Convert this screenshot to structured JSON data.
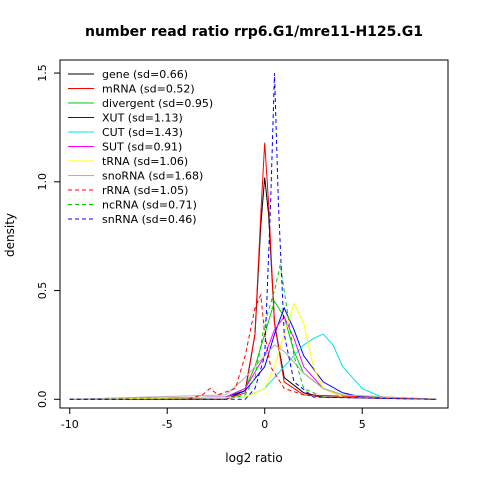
{
  "chart_data": {
    "type": "line",
    "title": "number read ratio rrp6.G1/mre11-H125.G1",
    "xlabel": "log2 ratio",
    "ylabel": "density",
    "xlim": [
      -10.5,
      9.4
    ],
    "ylim": [
      -0.04,
      1.56
    ],
    "xticks": [
      -10,
      -5,
      0,
      5
    ],
    "xtick_labels": [
      "-10",
      "-5",
      "0",
      "5"
    ],
    "yticks": [
      0.0,
      0.5,
      1.0,
      1.5
    ],
    "ytick_labels": [
      "0.0",
      "0.5",
      "1.0",
      "1.5"
    ],
    "grid": false,
    "legend_position": "top-left",
    "series": [
      {
        "name": "gene (sd=0.66)",
        "color": "#000000",
        "dash": "solid",
        "points": [
          [
            -10,
            0
          ],
          [
            -2,
            0
          ],
          [
            -1,
            0.04
          ],
          [
            -0.5,
            0.3
          ],
          [
            -0.2,
            0.8
          ],
          [
            0,
            1.02
          ],
          [
            0.2,
            0.85
          ],
          [
            0.5,
            0.35
          ],
          [
            1,
            0.1
          ],
          [
            2,
            0.03
          ],
          [
            3,
            0.01
          ],
          [
            8.8,
            0
          ]
        ]
      },
      {
        "name": "mRNA (sd=0.52)",
        "color": "#ff0000",
        "dash": "solid",
        "points": [
          [
            -10,
            0
          ],
          [
            -2,
            0
          ],
          [
            -1,
            0.03
          ],
          [
            -0.5,
            0.3
          ],
          [
            -0.2,
            0.85
          ],
          [
            0,
            1.18
          ],
          [
            0.2,
            0.9
          ],
          [
            0.5,
            0.35
          ],
          [
            1,
            0.08
          ],
          [
            2,
            0.02
          ],
          [
            8.8,
            0
          ]
        ]
      },
      {
        "name": "divergent (sd=0.95)",
        "color": "#00cc00",
        "dash": "solid",
        "points": [
          [
            -10,
            0
          ],
          [
            -2,
            0.01
          ],
          [
            -1,
            0.05
          ],
          [
            -0.5,
            0.15
          ],
          [
            0,
            0.3
          ],
          [
            0.5,
            0.45
          ],
          [
            1,
            0.38
          ],
          [
            1.5,
            0.22
          ],
          [
            2,
            0.12
          ],
          [
            3,
            0.05
          ],
          [
            4,
            0.02
          ],
          [
            8.8,
            0
          ]
        ]
      },
      {
        "name": "XUT (sd=1.13)",
        "color": "#0000ff",
        "dash": "solid",
        "points": [
          [
            -10,
            0
          ],
          [
            -2,
            0.01
          ],
          [
            -1,
            0.04
          ],
          [
            0,
            0.15
          ],
          [
            0.5,
            0.3
          ],
          [
            1,
            0.42
          ],
          [
            1.5,
            0.32
          ],
          [
            2,
            0.2
          ],
          [
            3,
            0.08
          ],
          [
            4,
            0.03
          ],
          [
            5,
            0.01
          ],
          [
            8.8,
            0
          ]
        ]
      },
      {
        "name": "CUT (sd=1.43)",
        "color": "#00e5e5",
        "dash": "solid",
        "points": [
          [
            -10,
            0
          ],
          [
            -1,
            0.01
          ],
          [
            0,
            0.05
          ],
          [
            1,
            0.15
          ],
          [
            1.5,
            0.2
          ],
          [
            2,
            0.25
          ],
          [
            2.5,
            0.28
          ],
          [
            3,
            0.3
          ],
          [
            3.5,
            0.25
          ],
          [
            4,
            0.15
          ],
          [
            5,
            0.05
          ],
          [
            6,
            0.01
          ],
          [
            8.8,
            0
          ]
        ]
      },
      {
        "name": "SUT (sd=0.91)",
        "color": "#ff00ff",
        "dash": "solid",
        "points": [
          [
            -10,
            0
          ],
          [
            -2,
            0.01
          ],
          [
            -1,
            0.05
          ],
          [
            0,
            0.2
          ],
          [
            0.5,
            0.32
          ],
          [
            1,
            0.38
          ],
          [
            1.5,
            0.28
          ],
          [
            2,
            0.15
          ],
          [
            3,
            0.05
          ],
          [
            4,
            0.01
          ],
          [
            8.8,
            0
          ]
        ]
      },
      {
        "name": "tRNA (sd=1.06)",
        "color": "#ffff00",
        "dash": "solid",
        "points": [
          [
            -10,
            0
          ],
          [
            -1,
            0.01
          ],
          [
            0,
            0.05
          ],
          [
            0.5,
            0.15
          ],
          [
            1,
            0.3
          ],
          [
            1.5,
            0.44
          ],
          [
            2,
            0.35
          ],
          [
            2.5,
            0.15
          ],
          [
            3,
            0.05
          ],
          [
            4,
            0.01
          ],
          [
            8.8,
            0
          ]
        ]
      },
      {
        "name": "snoRNA (sd=1.68)",
        "color": "#b0b0b0",
        "dash": "solid",
        "points": [
          [
            -10,
            0
          ],
          [
            -2,
            0.02
          ],
          [
            -1,
            0.1
          ],
          [
            0,
            0.2
          ],
          [
            0.5,
            0.25
          ],
          [
            1,
            0.22
          ],
          [
            2,
            0.12
          ],
          [
            3,
            0.05
          ],
          [
            4,
            0.02
          ],
          [
            8.8,
            0
          ]
        ]
      },
      {
        "name": "rRNA (sd=1.05)",
        "color": "#ff0000",
        "dash": "dashed",
        "points": [
          [
            -10,
            0
          ],
          [
            -4,
            0
          ],
          [
            -3.2,
            0.02
          ],
          [
            -2.8,
            0.05
          ],
          [
            -2.4,
            0.02
          ],
          [
            -1.5,
            0.05
          ],
          [
            -1,
            0.2
          ],
          [
            -0.5,
            0.42
          ],
          [
            -0.2,
            0.48
          ],
          [
            0,
            0.3
          ],
          [
            0.3,
            0.15
          ],
          [
            1,
            0.05
          ],
          [
            2,
            0.02
          ],
          [
            3,
            0.01
          ],
          [
            8.8,
            0
          ]
        ]
      },
      {
        "name": "ncRNA (sd=0.71)",
        "color": "#00cc00",
        "dash": "dashed",
        "points": [
          [
            -10,
            0
          ],
          [
            -2,
            0
          ],
          [
            -1,
            0.02
          ],
          [
            -0.5,
            0.1
          ],
          [
            0,
            0.35
          ],
          [
            0.5,
            0.5
          ],
          [
            0.8,
            0.62
          ],
          [
            1,
            0.5
          ],
          [
            1.5,
            0.2
          ],
          [
            2,
            0.05
          ],
          [
            3,
            0.01
          ],
          [
            8.8,
            0
          ]
        ]
      },
      {
        "name": "snRNA (sd=0.46)",
        "color": "#0000ff",
        "dash": "dashed",
        "points": [
          [
            -10,
            0
          ],
          [
            -1,
            0
          ],
          [
            -0.5,
            0.05
          ],
          [
            0,
            0.2
          ],
          [
            0.3,
            0.9
          ],
          [
            0.5,
            1.5
          ],
          [
            0.7,
            0.9
          ],
          [
            1,
            0.3
          ],
          [
            1.5,
            0.08
          ],
          [
            2.5,
            0.01
          ],
          [
            8.8,
            0
          ]
        ]
      }
    ]
  }
}
